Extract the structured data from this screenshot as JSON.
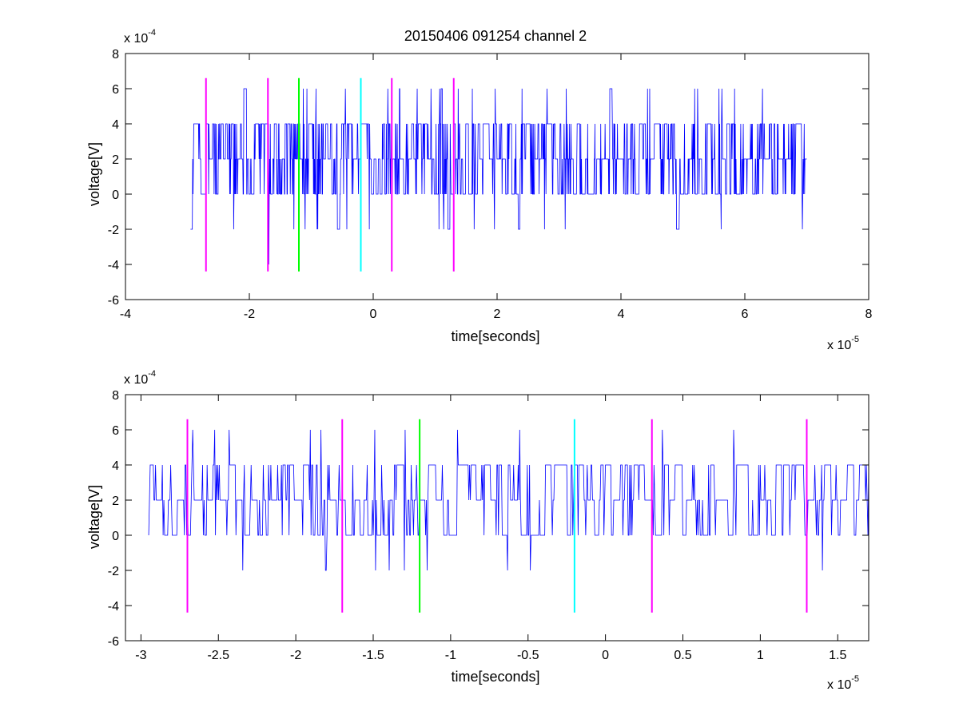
{
  "chart_data": [
    {
      "type": "line",
      "title": "20150406 091254 channel 2",
      "xlabel": "time[seconds]",
      "ylabel": "voltage[V]",
      "x_exponent_label": "x 10",
      "x_exponent": "-5",
      "y_exponent_label": "x 10",
      "y_exponent": "-4",
      "xlim": [
        -4e-05,
        8e-05
      ],
      "ylim": [
        -0.0006,
        0.0008
      ],
      "x_ticks": [
        -4,
        -2,
        0,
        2,
        4,
        6,
        8
      ],
      "x_tick_labels": [
        "-4",
        "-2",
        "0",
        "2",
        "4",
        "6",
        "8"
      ],
      "y_ticks": [
        -6,
        -4,
        -2,
        0,
        2,
        4,
        6,
        8
      ],
      "y_tick_labels": [
        "-6",
        "-4",
        "-2",
        "0",
        "2",
        "4",
        "6",
        "8"
      ],
      "grid": false,
      "series": [
        {
          "color": "#0000ff",
          "x_range": [
            -2.95e-05,
            7e-05
          ],
          "values_set": [
            -0.0004,
            -0.0002,
            0,
            0.0002,
            0.0004,
            0.0006
          ],
          "note_levels": "signal toggles mostly between 0, 2e-4 and 4e-4 with occasional spikes to 6e-4 and dips to -2e-4 / -4e-4"
        }
      ],
      "markers": [
        {
          "x": -2.7e-05,
          "color": "#ff00ff",
          "y_range": [
            -0.00044,
            0.00066
          ]
        },
        {
          "x": -1.7e-05,
          "color": "#ff00ff",
          "y_range": [
            -0.00044,
            0.00066
          ]
        },
        {
          "x": -1.2e-05,
          "color": "#00ff00",
          "y_range": [
            -0.00044,
            0.00066
          ]
        },
        {
          "x": -2e-06,
          "color": "#00ffff",
          "y_range": [
            -0.00044,
            0.00066
          ]
        },
        {
          "x": 3e-06,
          "color": "#ff00ff",
          "y_range": [
            -0.00044,
            0.00066
          ]
        },
        {
          "x": 1.3e-05,
          "color": "#ff00ff",
          "y_range": [
            -0.00044,
            0.00066
          ]
        }
      ]
    },
    {
      "type": "line",
      "title": "",
      "xlabel": "time[seconds]",
      "ylabel": "voltage[V]",
      "x_exponent_label": "x 10",
      "x_exponent": "-5",
      "y_exponent_label": "x 10",
      "y_exponent": "-4",
      "xlim": [
        -3.1e-05,
        1.7e-05
      ],
      "ylim": [
        -0.0006,
        0.0008
      ],
      "x_ticks": [
        -3,
        -2.5,
        -2,
        -1.5,
        -1,
        -0.5,
        0,
        0.5,
        1,
        1.5
      ],
      "x_tick_labels": [
        "-3",
        "-2.5",
        "-2",
        "-1.5",
        "-1",
        "-0.5",
        "0",
        "0.5",
        "1",
        "1.5"
      ],
      "y_ticks": [
        -6,
        -4,
        -2,
        0,
        2,
        4,
        6,
        8
      ],
      "y_tick_labels": [
        "-6",
        "-4",
        "-2",
        "0",
        "2",
        "4",
        "6",
        "8"
      ],
      "grid": false,
      "series": [
        {
          "color": "#0000ff",
          "x_range": [
            -2.95e-05,
            1.7e-05
          ],
          "values_set": [
            -0.0002,
            0,
            0.0002,
            0.0004,
            0.0006
          ]
        }
      ],
      "markers": [
        {
          "x": -2.7e-05,
          "color": "#ff00ff",
          "y_range": [
            -0.00044,
            0.00066
          ]
        },
        {
          "x": -1.7e-05,
          "color": "#ff00ff",
          "y_range": [
            -0.00044,
            0.00066
          ]
        },
        {
          "x": -1.2e-05,
          "color": "#00ff00",
          "y_range": [
            -0.00044,
            0.00066
          ]
        },
        {
          "x": -2e-06,
          "color": "#00ffff",
          "y_range": [
            -0.00044,
            0.00066
          ]
        },
        {
          "x": 3e-06,
          "color": "#ff00ff",
          "y_range": [
            -0.00044,
            0.00066
          ]
        },
        {
          "x": 1.3e-05,
          "color": "#ff00ff",
          "y_range": [
            -0.00044,
            0.00066
          ]
        }
      ]
    }
  ]
}
